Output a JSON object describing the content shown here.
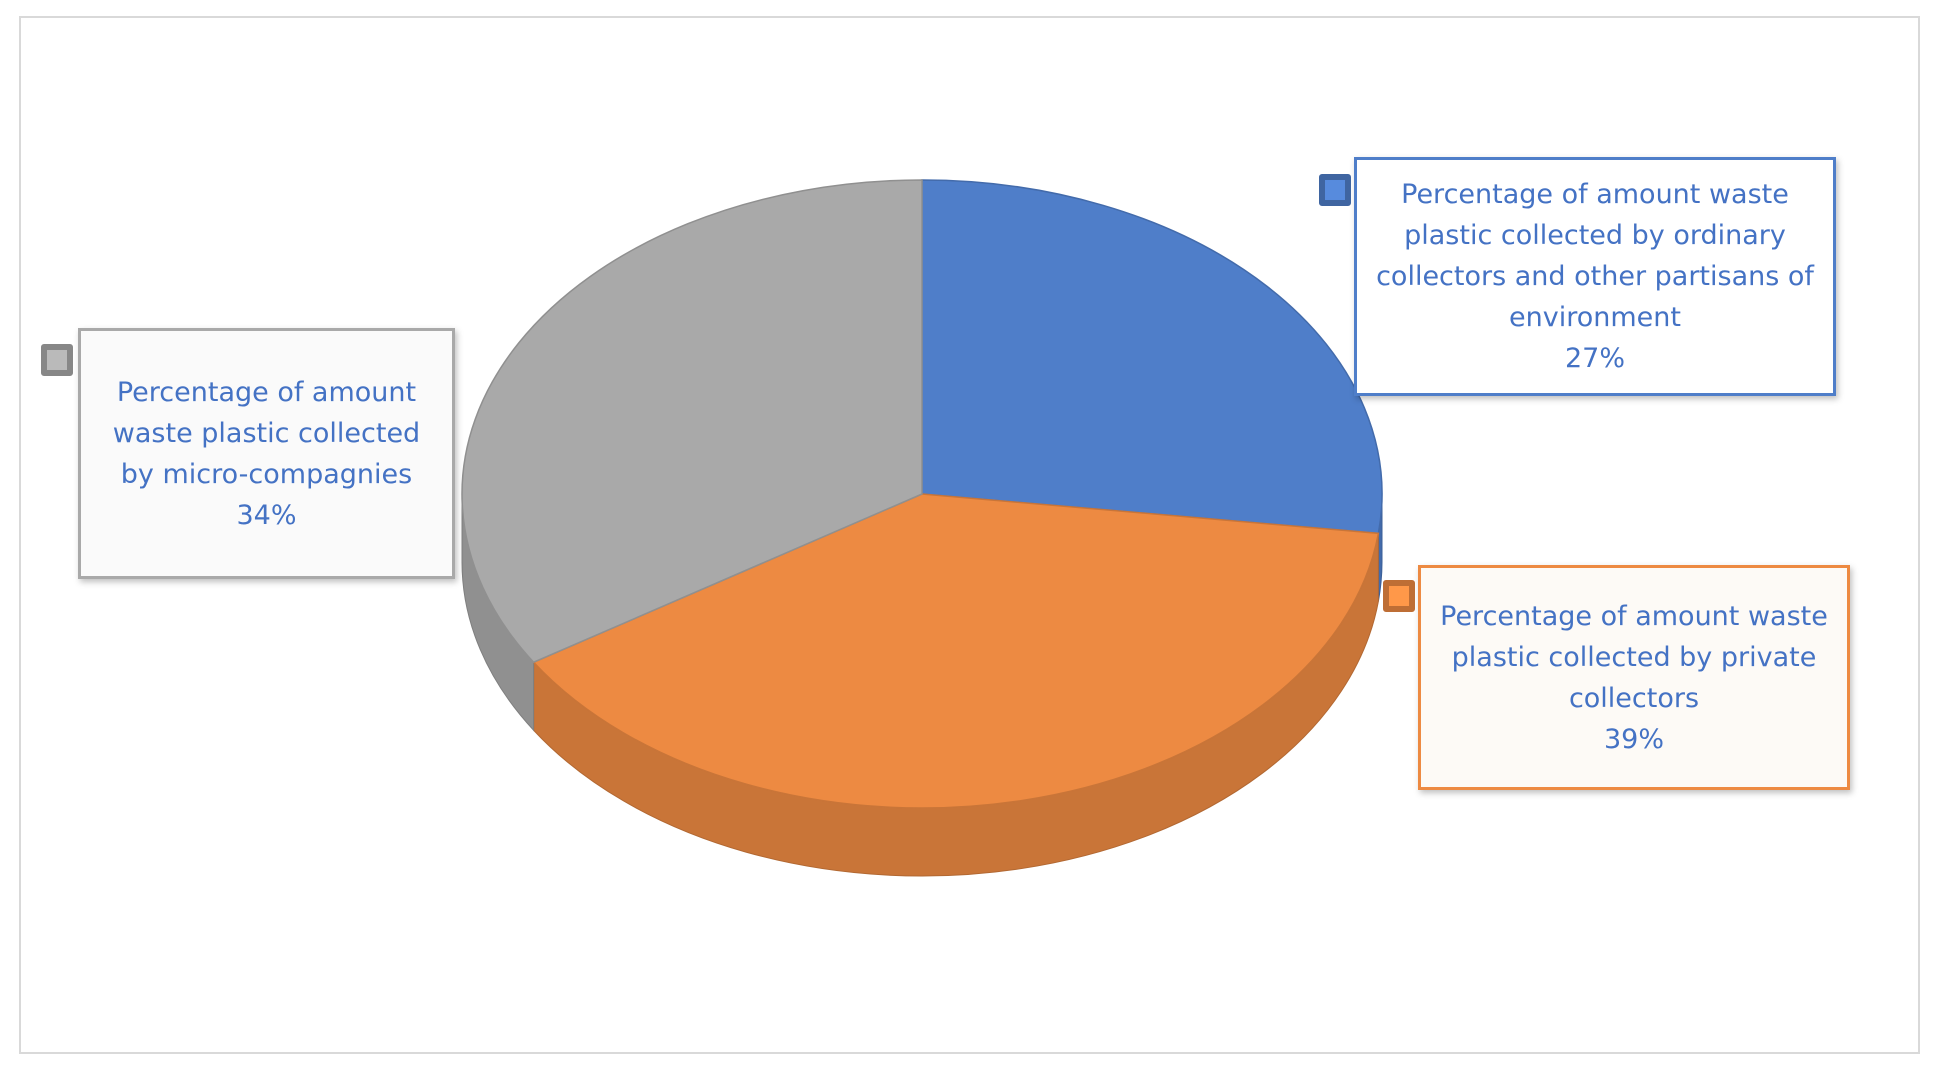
{
  "chart_data": {
    "type": "pie",
    "categories": [
      "Percentage of amount waste plastic collected by ordinary collectors and other partisans of environment",
      "Percentage of amount waste plastic collected by private collectors",
      "Percentage of amount waste plastic collected by micro-compagnies"
    ],
    "values": [
      27,
      39,
      34
    ],
    "value_labels": [
      "27%",
      "39%",
      "34%"
    ],
    "colors": [
      "#4f7ec9",
      "#ed8a42",
      "#a9a9a9"
    ]
  }
}
